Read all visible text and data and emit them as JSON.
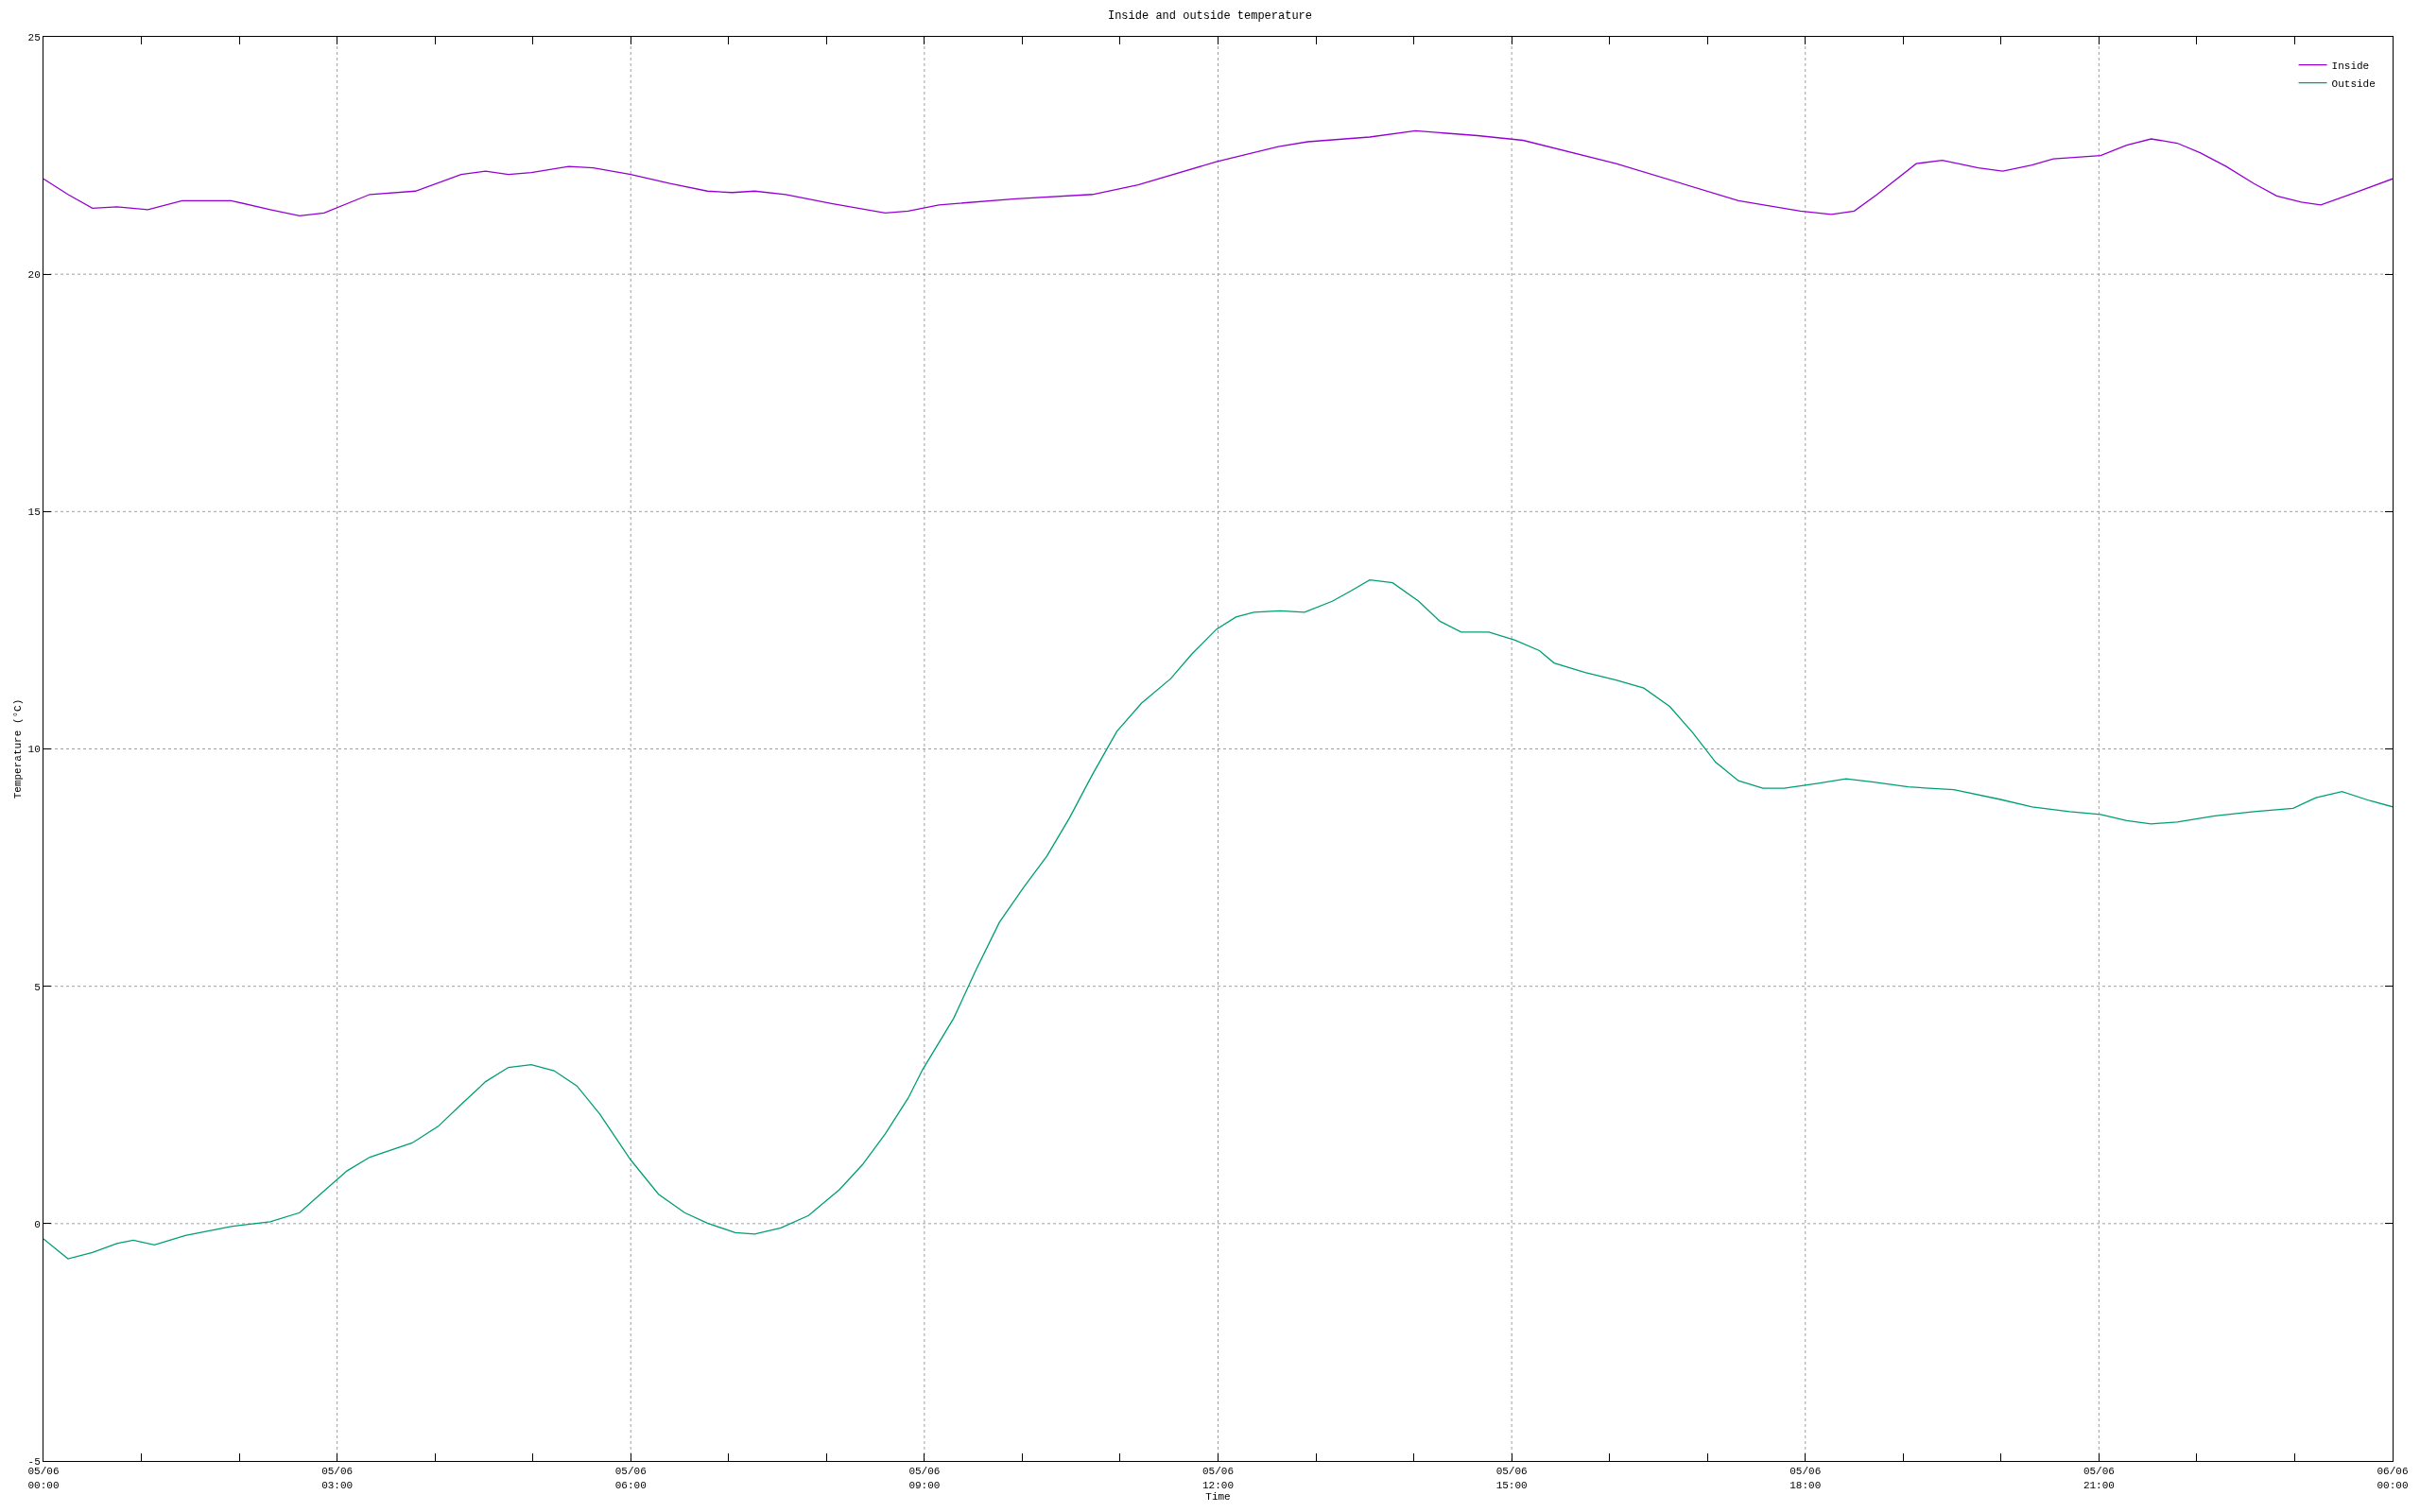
{
  "chart_data": {
    "type": "line",
    "title": "Inside and outside temperature",
    "xlabel": "Time",
    "ylabel": "Temperature (°C)",
    "xlim": [
      "--06-05T00:00",
      "--06-06T00:00"
    ],
    "ylim": [
      -5,
      25
    ],
    "xticks": [
      {
        "value": "--06-05T00:00",
        "label": "05/06\n00:00"
      },
      {
        "value": "--06-05T01:00",
        "label": null
      },
      {
        "value": "--06-05T02:00",
        "label": null
      },
      {
        "value": "--06-05T03:00",
        "label": "05/06\n03:00"
      },
      {
        "value": "--06-05T04:00",
        "label": null
      },
      {
        "value": "--06-05T05:00",
        "label": null
      },
      {
        "value": "--06-05T06:00",
        "label": "05/06\n06:00"
      },
      {
        "value": "--06-05T07:00",
        "label": null
      },
      {
        "value": "--06-05T08:00",
        "label": null
      },
      {
        "value": "--06-05T09:00",
        "label": "05/06\n09:00"
      },
      {
        "value": "--06-05T10:00",
        "label": null
      },
      {
        "value": "--06-05T11:00",
        "label": null
      },
      {
        "value": "--06-05T12:00",
        "label": "05/06\n12:00"
      },
      {
        "value": "--06-05T13:00",
        "label": null
      },
      {
        "value": "--06-05T14:00",
        "label": null
      },
      {
        "value": "--06-05T15:00",
        "label": "05/06\n15:00"
      },
      {
        "value": "--06-05T16:00",
        "label": null
      },
      {
        "value": "--06-05T17:00",
        "label": null
      },
      {
        "value": "--06-05T18:00",
        "label": "05/06\n18:00"
      },
      {
        "value": "--06-05T19:00",
        "label": null
      },
      {
        "value": "--06-05T20:00",
        "label": null
      },
      {
        "value": "--06-05T21:00",
        "label": "05/06\n21:00"
      },
      {
        "value": "--06-05T22:00",
        "label": null
      },
      {
        "value": "--06-05T23:00",
        "label": null
      },
      {
        "value": "--06-06T00:00",
        "label": "06/06\n00:00"
      }
    ],
    "yticks": [
      -5,
      0,
      5,
      10,
      15,
      20,
      25
    ],
    "grid": true,
    "legend": "top right",
    "marker": "none",
    "line_style": "solid",
    "series": [
      {
        "name": "Inside",
        "color": "#9400d3",
        "x": [
          "--06-05T00:00",
          "--06-05T00:15",
          "--06-05T00:30",
          "--06-05T00:45",
          "--06-05T01:04",
          "--06-05T01:25",
          "--06-05T01:55",
          "--06-05T02:19",
          "--06-05T02:37",
          "--06-05T02:52",
          "--06-05T03:20",
          "--06-05T03:48",
          "--06-05T04:16",
          "--06-05T04:31",
          "--06-05T04:45",
          "--06-05T04:59",
          "--06-05T05:22",
          "--06-05T05:37",
          "--06-05T06:00",
          "--06-05T06:24",
          "--06-05T06:47",
          "--06-05T07:02",
          "--06-05T07:16",
          "--06-05T07:35",
          "--06-05T08:03",
          "--06-05T08:36",
          "--06-05T08:50",
          "--06-05T09:09",
          "--06-05T09:56",
          "--06-05T10:43",
          "--06-05T11:11",
          "--06-05T11:59",
          "--06-05T12:37",
          "--06-05T12:55",
          "--06-05T13:33",
          "--06-05T14:01",
          "--06-05T14:39",
          "--06-05T15:07",
          "--06-05T16:04",
          "--06-05T17:19",
          "--06-05T17:57",
          "--06-05T18:16",
          "--06-05T18:30",
          "--06-05T18:44",
          "--06-05T19:08",
          "--06-05T19:24",
          "--06-05T19:46",
          "--06-05T20:01",
          "--06-05T20:19",
          "--06-05T20:32",
          "--06-05T21:01",
          "--06-05T21:17",
          "--06-05T21:32",
          "--06-05T21:48",
          "--06-05T22:02",
          "--06-05T22:18",
          "--06-05T22:35",
          "--06-05T22:49",
          "--06-05T23:04",
          "--06-05T23:16",
          "--06-05T23:37",
          "--06-06T00:00"
        ],
        "values": [
          22.01,
          21.68,
          21.39,
          21.42,
          21.36,
          21.55,
          21.55,
          21.36,
          21.23,
          21.29,
          21.68,
          21.75,
          22.1,
          22.17,
          22.1,
          22.14,
          22.27,
          22.24,
          22.1,
          21.91,
          21.75,
          21.72,
          21.75,
          21.68,
          21.49,
          21.29,
          21.33,
          21.46,
          21.59,
          21.68,
          21.88,
          22.37,
          22.69,
          22.79,
          22.89,
          23.02,
          22.92,
          22.82,
          22.33,
          21.55,
          21.33,
          21.26,
          21.33,
          21.68,
          22.33,
          22.4,
          22.24,
          22.17,
          22.3,
          22.43,
          22.5,
          22.72,
          22.85,
          22.76,
          22.56,
          22.27,
          21.91,
          21.65,
          21.52,
          21.46,
          21.72,
          22.01
        ]
      },
      {
        "name": "Outside",
        "color": "#009e73",
        "x": [
          "--06-05T00:00",
          "--06-05T00:15",
          "--06-05T00:30",
          "--06-05T00:45",
          "--06-05T00:55",
          "--06-05T01:08",
          "--06-05T01:27",
          "--06-05T01:55",
          "--06-05T02:19",
          "--06-05T02:37",
          "--06-05T02:52",
          "--06-05T03:06",
          "--06-05T03:20",
          "--06-05T03:46",
          "--06-05T04:02",
          "--06-05T04:16",
          "--06-05T04:31",
          "--06-05T04:45",
          "--06-05T04:59",
          "--06-05T05:13",
          "--06-05T05:27",
          "--06-05T05:41",
          "--06-05T06:00",
          "--06-05T06:17",
          "--06-05T06:33",
          "--06-05T06:47",
          "--06-05T07:04",
          "--06-05T07:16",
          "--06-05T07:32",
          "--06-05T07:49",
          "--06-05T08:08",
          "--06-05T08:22",
          "--06-05T08:36",
          "--06-05T08:50",
          "--06-05T08:59",
          "--06-05T09:18",
          "--06-05T09:32",
          "--06-05T09:46",
          "--06-05T10:01",
          "--06-05T10:15",
          "--06-05T10:29",
          "--06-05T10:43",
          "--06-05T10:58",
          "--06-05T11:13",
          "--06-05T11:31",
          "--06-05T11:44",
          "--06-05T11:59",
          "--06-05T12:11",
          "--06-05T12:22",
          "--06-05T12:38",
          "--06-05T12:53",
          "--06-05T13:10",
          "--06-05T13:22",
          "--06-05T13:33",
          "--06-05T13:47",
          "--06-05T14:03",
          "--06-05T14:16",
          "--06-05T14:29",
          "--06-05T14:46",
          "--06-05T15:02",
          "--06-05T15:17",
          "--06-05T15:26",
          "--06-05T15:45",
          "--06-05T16:04",
          "--06-05T16:21",
          "--06-05T16:37",
          "--06-05T16:51",
          "--06-05T17:05",
          "--06-05T17:19",
          "--06-05T17:34",
          "--06-05T17:47",
          "--06-05T18:07",
          "--06-05T18:25",
          "--06-05T18:42",
          "--06-05T19:03",
          "--06-05T19:31",
          "--06-05T19:59",
          "--06-05T20:19",
          "--06-05T20:42",
          "--06-05T21:01",
          "--06-05T21:17",
          "--06-05T21:32",
          "--06-05T21:48",
          "--06-05T22:11",
          "--06-05T22:35",
          "--06-05T22:59",
          "--06-05T23:13",
          "--06-05T23:29",
          "--06-05T23:46",
          "--06-06T00:00"
        ],
        "values": [
          -0.32,
          -0.74,
          -0.61,
          -0.42,
          -0.35,
          -0.45,
          -0.25,
          -0.06,
          0.04,
          0.23,
          0.69,
          1.11,
          1.4,
          1.7,
          2.05,
          2.51,
          2.99,
          3.29,
          3.35,
          3.22,
          2.9,
          2.31,
          1.34,
          0.62,
          0.23,
          0.01,
          -0.19,
          -0.22,
          -0.09,
          0.17,
          0.72,
          1.24,
          1.89,
          2.64,
          3.25,
          4.33,
          5.37,
          6.35,
          7.09,
          7.74,
          8.55,
          9.46,
          10.37,
          10.96,
          11.48,
          12.0,
          12.52,
          12.78,
          12.88,
          12.91,
          12.88,
          13.11,
          13.34,
          13.56,
          13.5,
          13.11,
          12.69,
          12.46,
          12.46,
          12.29,
          12.07,
          11.81,
          11.61,
          11.45,
          11.28,
          10.89,
          10.34,
          9.72,
          9.33,
          9.17,
          9.17,
          9.27,
          9.37,
          9.3,
          9.2,
          9.14,
          8.94,
          8.78,
          8.68,
          8.62,
          8.49,
          8.42,
          8.46,
          8.59,
          8.68,
          8.75,
          8.97,
          9.1,
          8.91,
          8.78
        ]
      }
    ]
  }
}
